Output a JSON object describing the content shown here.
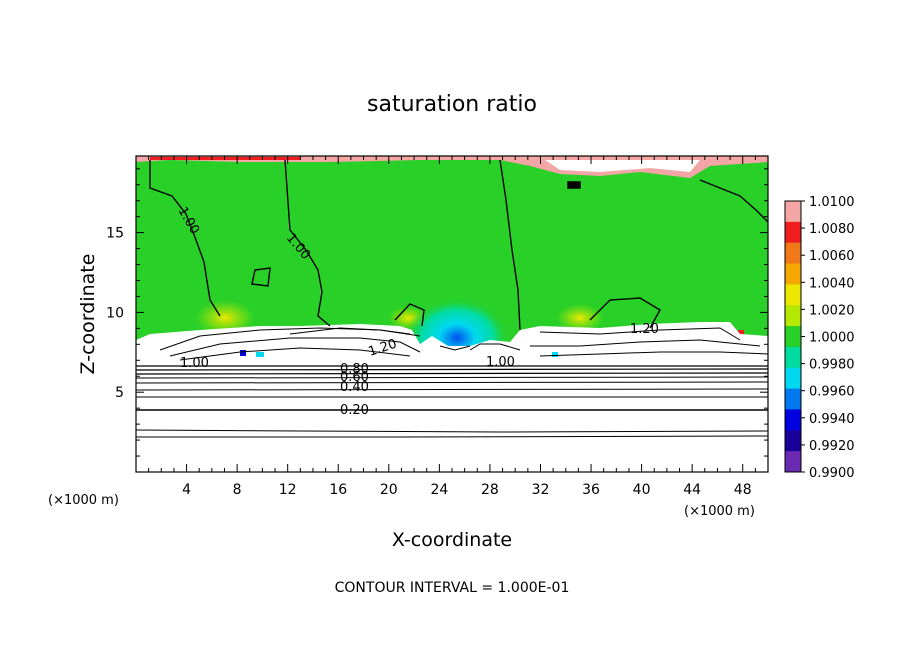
{
  "chart_data": {
    "type": "heatmap",
    "title": "saturation ratio",
    "xlabel": "X-coordinate",
    "ylabel": "Z-coordinate",
    "x_unit": "(×1000 m)",
    "x_unit_right": "(×1000 m)",
    "xlim": [
      0,
      50
    ],
    "ylim": [
      0,
      19.8
    ],
    "x_ticks": [
      "4",
      "8",
      "12",
      "16",
      "20",
      "24",
      "28",
      "32",
      "36",
      "40",
      "44",
      "48"
    ],
    "y_ticks": [
      "5",
      "10",
      "15"
    ],
    "colorbar": {
      "labels": [
        "1.0100",
        "1.0080",
        "1.0060",
        "1.0040",
        "1.0020",
        "1.0000",
        "0.9980",
        "0.9960",
        "0.9940",
        "0.9920",
        "0.9900"
      ],
      "colors": [
        "#f4a6a6",
        "#f01e1e",
        "#f07818",
        "#f5a800",
        "#ece800",
        "#b4e800",
        "#28d028",
        "#00dca0",
        "#00d8f0",
        "#0078f0",
        "#0000e0",
        "#1a0098",
        "#6a2ab4"
      ]
    },
    "contour_labels": [
      "1.00",
      "1.00",
      "1.00",
      "1.20",
      "1.20",
      "1.00",
      "0.80",
      "0.60",
      "0.40",
      "0.20"
    ],
    "contour_interval": "CONTOUR INTERVAL = 1.000E-01",
    "background_color": "#28d028"
  }
}
